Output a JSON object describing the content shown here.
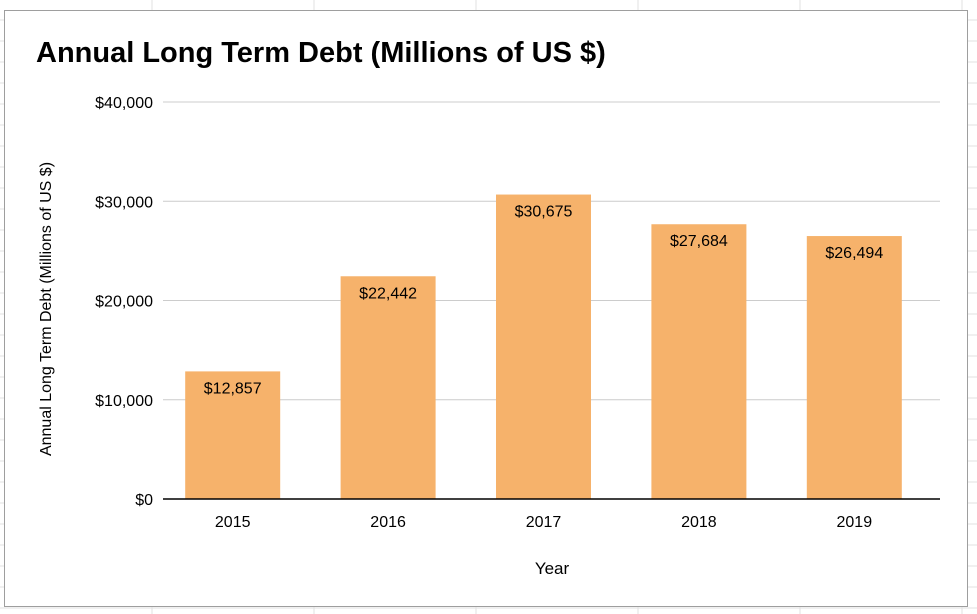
{
  "chart_data": {
    "type": "bar",
    "title": "Annual Long Term Debt (Millions of US $)",
    "xlabel": "Year",
    "ylabel": "Annual Long Term Debt (Millions of US $)",
    "categories": [
      "2015",
      "2016",
      "2017",
      "2018",
      "2019"
    ],
    "values": [
      12857,
      22442,
      30675,
      27684,
      26494
    ],
    "data_labels": [
      "$12,857",
      "$22,442",
      "$30,675",
      "$27,684",
      "$26,494"
    ],
    "ylim": [
      0,
      40000
    ],
    "yticks": [
      0,
      10000,
      20000,
      30000,
      40000
    ],
    "ytick_labels": [
      "$0",
      "$10,000",
      "$20,000",
      "$30,000",
      "$40,000"
    ],
    "grid": true,
    "legend": "none",
    "colors": {
      "bar": "#f6b26b",
      "gridline": "#cccccc",
      "axis": "#000000",
      "text": "#000000"
    }
  }
}
